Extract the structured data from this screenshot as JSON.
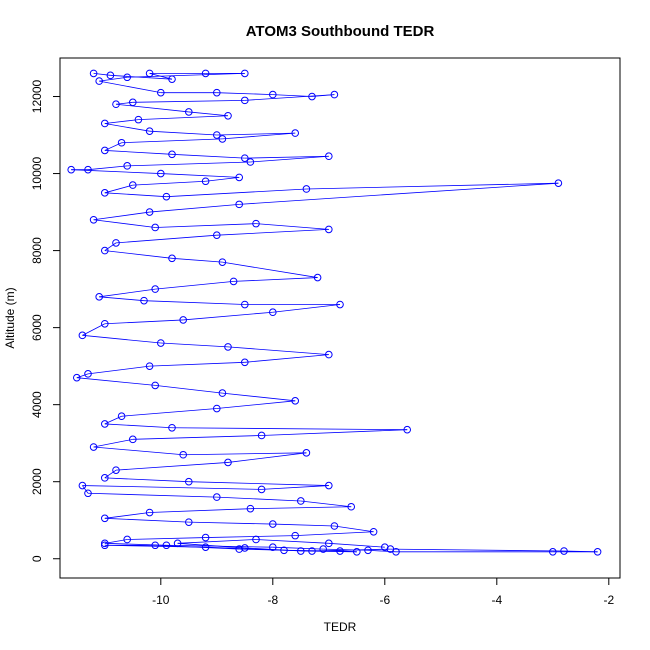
{
  "chart_data": {
    "type": "scatter",
    "title": "ATOM3 Southbound TEDR",
    "xlabel": "TEDR",
    "ylabel": "Altitude (m)",
    "xlim": [
      -11.8,
      -1.8
    ],
    "ylim": [
      -500,
      13000
    ],
    "xticks": [
      -10,
      -8,
      -6,
      -4,
      -2
    ],
    "yticks": [
      0,
      2000,
      4000,
      6000,
      8000,
      10000,
      12000
    ],
    "grid": false,
    "connected": true,
    "marker": "open-circle",
    "color": "#0000ff",
    "series": [
      {
        "name": "",
        "points": [
          [
            -11.2,
            12600
          ],
          [
            -10.9,
            12550
          ],
          [
            -9.8,
            12450
          ],
          [
            -10.2,
            12600
          ],
          [
            -9.2,
            12600
          ],
          [
            -8.5,
            12600
          ],
          [
            -10.6,
            12500
          ],
          [
            -11.1,
            12400
          ],
          [
            -10.0,
            12100
          ],
          [
            -9.0,
            12100
          ],
          [
            -8.0,
            12050
          ],
          [
            -7.3,
            12000
          ],
          [
            -6.9,
            12050
          ],
          [
            -8.5,
            11900
          ],
          [
            -10.5,
            11850
          ],
          [
            -10.8,
            11800
          ],
          [
            -9.5,
            11600
          ],
          [
            -8.8,
            11500
          ],
          [
            -10.4,
            11400
          ],
          [
            -11.0,
            11300
          ],
          [
            -10.2,
            11100
          ],
          [
            -9.0,
            11000
          ],
          [
            -7.6,
            11050
          ],
          [
            -8.9,
            10900
          ],
          [
            -10.7,
            10800
          ],
          [
            -11.0,
            10600
          ],
          [
            -9.8,
            10500
          ],
          [
            -8.5,
            10400
          ],
          [
            -7.0,
            10450
          ],
          [
            -8.4,
            10300
          ],
          [
            -10.6,
            10200
          ],
          [
            -11.3,
            10100
          ],
          [
            -11.6,
            10100
          ],
          [
            -10.0,
            10000
          ],
          [
            -8.6,
            9900
          ],
          [
            -9.2,
            9800
          ],
          [
            -10.5,
            9700
          ],
          [
            -11.0,
            9500
          ],
          [
            -9.9,
            9400
          ],
          [
            -7.4,
            9600
          ],
          [
            -2.9,
            9750
          ],
          [
            -8.6,
            9200
          ],
          [
            -10.2,
            9000
          ],
          [
            -11.2,
            8800
          ],
          [
            -10.1,
            8600
          ],
          [
            -8.3,
            8700
          ],
          [
            -7.0,
            8550
          ],
          [
            -9.0,
            8400
          ],
          [
            -10.8,
            8200
          ],
          [
            -11.0,
            8000
          ],
          [
            -9.8,
            7800
          ],
          [
            -8.9,
            7700
          ],
          [
            -7.2,
            7300
          ],
          [
            -8.7,
            7200
          ],
          [
            -10.1,
            7000
          ],
          [
            -11.1,
            6800
          ],
          [
            -10.3,
            6700
          ],
          [
            -8.5,
            6600
          ],
          [
            -6.8,
            6600
          ],
          [
            -8.0,
            6400
          ],
          [
            -9.6,
            6200
          ],
          [
            -11.0,
            6100
          ],
          [
            -11.4,
            5800
          ],
          [
            -10.0,
            5600
          ],
          [
            -8.8,
            5500
          ],
          [
            -7.0,
            5300
          ],
          [
            -8.5,
            5100
          ],
          [
            -10.2,
            5000
          ],
          [
            -11.3,
            4800
          ],
          [
            -11.5,
            4700
          ],
          [
            -10.1,
            4500
          ],
          [
            -8.9,
            4300
          ],
          [
            -7.6,
            4100
          ],
          [
            -9.0,
            3900
          ],
          [
            -10.7,
            3700
          ],
          [
            -11.0,
            3500
          ],
          [
            -9.8,
            3400
          ],
          [
            -5.6,
            3350
          ],
          [
            -8.2,
            3200
          ],
          [
            -10.5,
            3100
          ],
          [
            -11.2,
            2900
          ],
          [
            -9.6,
            2700
          ],
          [
            -7.4,
            2750
          ],
          [
            -8.8,
            2500
          ],
          [
            -10.8,
            2300
          ],
          [
            -11.0,
            2100
          ],
          [
            -9.5,
            2000
          ],
          [
            -7.0,
            1900
          ],
          [
            -8.2,
            1800
          ],
          [
            -11.4,
            1900
          ],
          [
            -11.3,
            1700
          ],
          [
            -9.0,
            1600
          ],
          [
            -7.5,
            1500
          ],
          [
            -6.6,
            1350
          ],
          [
            -8.4,
            1300
          ],
          [
            -10.2,
            1200
          ],
          [
            -11.0,
            1050
          ],
          [
            -9.5,
            950
          ],
          [
            -8.0,
            900
          ],
          [
            -6.9,
            850
          ],
          [
            -6.2,
            700
          ],
          [
            -7.6,
            600
          ],
          [
            -9.2,
            550
          ],
          [
            -10.6,
            500
          ],
          [
            -11.0,
            400
          ],
          [
            -9.9,
            350
          ],
          [
            -8.0,
            300
          ],
          [
            -7.1,
            250
          ],
          [
            -6.3,
            220
          ],
          [
            -5.8,
            180
          ],
          [
            -3.0,
            180
          ],
          [
            -2.2,
            180
          ],
          [
            -2.8,
            200
          ],
          [
            -5.9,
            250
          ],
          [
            -7.3,
            200
          ],
          [
            -8.6,
            250
          ],
          [
            -10.1,
            350
          ],
          [
            -11.0,
            350
          ],
          [
            -9.2,
            300
          ],
          [
            -7.8,
            220
          ],
          [
            -6.8,
            200
          ],
          [
            -6.5,
            180
          ],
          [
            -7.5,
            200
          ],
          [
            -8.5,
            280
          ],
          [
            -9.7,
            400
          ],
          [
            -8.3,
            500
          ],
          [
            -7.0,
            400
          ],
          [
            -6.0,
            300
          ]
        ]
      }
    ]
  }
}
